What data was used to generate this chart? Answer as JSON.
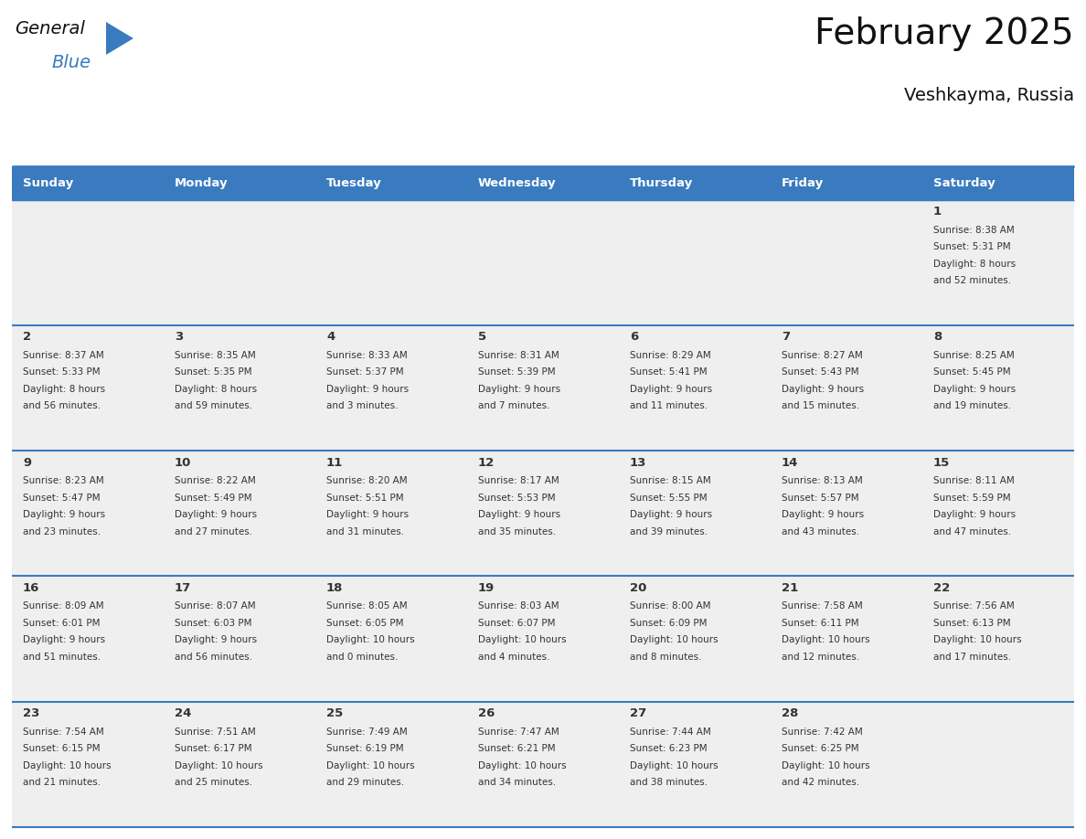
{
  "title": "February 2025",
  "subtitle": "Veshkayma, Russia",
  "header_color": "#3A7BBF",
  "header_text_color": "#FFFFFF",
  "day_names": [
    "Sunday",
    "Monday",
    "Tuesday",
    "Wednesday",
    "Thursday",
    "Friday",
    "Saturday"
  ],
  "row_bg_color": "#EFEFEF",
  "border_color": "#3A7BBF",
  "text_color": "#333333",
  "days": [
    {
      "date": 1,
      "col": 6,
      "row": 0,
      "sunrise": "8:38 AM",
      "sunset": "5:31 PM",
      "daylight_h": "8 hours",
      "daylight_m": "and 52 minutes."
    },
    {
      "date": 2,
      "col": 0,
      "row": 1,
      "sunrise": "8:37 AM",
      "sunset": "5:33 PM",
      "daylight_h": "8 hours",
      "daylight_m": "and 56 minutes."
    },
    {
      "date": 3,
      "col": 1,
      "row": 1,
      "sunrise": "8:35 AM",
      "sunset": "5:35 PM",
      "daylight_h": "8 hours",
      "daylight_m": "and 59 minutes."
    },
    {
      "date": 4,
      "col": 2,
      "row": 1,
      "sunrise": "8:33 AM",
      "sunset": "5:37 PM",
      "daylight_h": "9 hours",
      "daylight_m": "and 3 minutes."
    },
    {
      "date": 5,
      "col": 3,
      "row": 1,
      "sunrise": "8:31 AM",
      "sunset": "5:39 PM",
      "daylight_h": "9 hours",
      "daylight_m": "and 7 minutes."
    },
    {
      "date": 6,
      "col": 4,
      "row": 1,
      "sunrise": "8:29 AM",
      "sunset": "5:41 PM",
      "daylight_h": "9 hours",
      "daylight_m": "and 11 minutes."
    },
    {
      "date": 7,
      "col": 5,
      "row": 1,
      "sunrise": "8:27 AM",
      "sunset": "5:43 PM",
      "daylight_h": "9 hours",
      "daylight_m": "and 15 minutes."
    },
    {
      "date": 8,
      "col": 6,
      "row": 1,
      "sunrise": "8:25 AM",
      "sunset": "5:45 PM",
      "daylight_h": "9 hours",
      "daylight_m": "and 19 minutes."
    },
    {
      "date": 9,
      "col": 0,
      "row": 2,
      "sunrise": "8:23 AM",
      "sunset": "5:47 PM",
      "daylight_h": "9 hours",
      "daylight_m": "and 23 minutes."
    },
    {
      "date": 10,
      "col": 1,
      "row": 2,
      "sunrise": "8:22 AM",
      "sunset": "5:49 PM",
      "daylight_h": "9 hours",
      "daylight_m": "and 27 minutes."
    },
    {
      "date": 11,
      "col": 2,
      "row": 2,
      "sunrise": "8:20 AM",
      "sunset": "5:51 PM",
      "daylight_h": "9 hours",
      "daylight_m": "and 31 minutes."
    },
    {
      "date": 12,
      "col": 3,
      "row": 2,
      "sunrise": "8:17 AM",
      "sunset": "5:53 PM",
      "daylight_h": "9 hours",
      "daylight_m": "and 35 minutes."
    },
    {
      "date": 13,
      "col": 4,
      "row": 2,
      "sunrise": "8:15 AM",
      "sunset": "5:55 PM",
      "daylight_h": "9 hours",
      "daylight_m": "and 39 minutes."
    },
    {
      "date": 14,
      "col": 5,
      "row": 2,
      "sunrise": "8:13 AM",
      "sunset": "5:57 PM",
      "daylight_h": "9 hours",
      "daylight_m": "and 43 minutes."
    },
    {
      "date": 15,
      "col": 6,
      "row": 2,
      "sunrise": "8:11 AM",
      "sunset": "5:59 PM",
      "daylight_h": "9 hours",
      "daylight_m": "and 47 minutes."
    },
    {
      "date": 16,
      "col": 0,
      "row": 3,
      "sunrise": "8:09 AM",
      "sunset": "6:01 PM",
      "daylight_h": "9 hours",
      "daylight_m": "and 51 minutes."
    },
    {
      "date": 17,
      "col": 1,
      "row": 3,
      "sunrise": "8:07 AM",
      "sunset": "6:03 PM",
      "daylight_h": "9 hours",
      "daylight_m": "and 56 minutes."
    },
    {
      "date": 18,
      "col": 2,
      "row": 3,
      "sunrise": "8:05 AM",
      "sunset": "6:05 PM",
      "daylight_h": "10 hours",
      "daylight_m": "and 0 minutes."
    },
    {
      "date": 19,
      "col": 3,
      "row": 3,
      "sunrise": "8:03 AM",
      "sunset": "6:07 PM",
      "daylight_h": "10 hours",
      "daylight_m": "and 4 minutes."
    },
    {
      "date": 20,
      "col": 4,
      "row": 3,
      "sunrise": "8:00 AM",
      "sunset": "6:09 PM",
      "daylight_h": "10 hours",
      "daylight_m": "and 8 minutes."
    },
    {
      "date": 21,
      "col": 5,
      "row": 3,
      "sunrise": "7:58 AM",
      "sunset": "6:11 PM",
      "daylight_h": "10 hours",
      "daylight_m": "and 12 minutes."
    },
    {
      "date": 22,
      "col": 6,
      "row": 3,
      "sunrise": "7:56 AM",
      "sunset": "6:13 PM",
      "daylight_h": "10 hours",
      "daylight_m": "and 17 minutes."
    },
    {
      "date": 23,
      "col": 0,
      "row": 4,
      "sunrise": "7:54 AM",
      "sunset": "6:15 PM",
      "daylight_h": "10 hours",
      "daylight_m": "and 21 minutes."
    },
    {
      "date": 24,
      "col": 1,
      "row": 4,
      "sunrise": "7:51 AM",
      "sunset": "6:17 PM",
      "daylight_h": "10 hours",
      "daylight_m": "and 25 minutes."
    },
    {
      "date": 25,
      "col": 2,
      "row": 4,
      "sunrise": "7:49 AM",
      "sunset": "6:19 PM",
      "daylight_h": "10 hours",
      "daylight_m": "and 29 minutes."
    },
    {
      "date": 26,
      "col": 3,
      "row": 4,
      "sunrise": "7:47 AM",
      "sunset": "6:21 PM",
      "daylight_h": "10 hours",
      "daylight_m": "and 34 minutes."
    },
    {
      "date": 27,
      "col": 4,
      "row": 4,
      "sunrise": "7:44 AM",
      "sunset": "6:23 PM",
      "daylight_h": "10 hours",
      "daylight_m": "and 38 minutes."
    },
    {
      "date": 28,
      "col": 5,
      "row": 4,
      "sunrise": "7:42 AM",
      "sunset": "6:25 PM",
      "daylight_h": "10 hours",
      "daylight_m": "and 42 minutes."
    }
  ],
  "num_rows": 5,
  "num_cols": 7,
  "logo_text_general": "General",
  "logo_text_blue": "Blue",
  "logo_triangle_color": "#3A7BBF",
  "logo_general_color": "#111111",
  "logo_blue_color": "#3A7BBF"
}
